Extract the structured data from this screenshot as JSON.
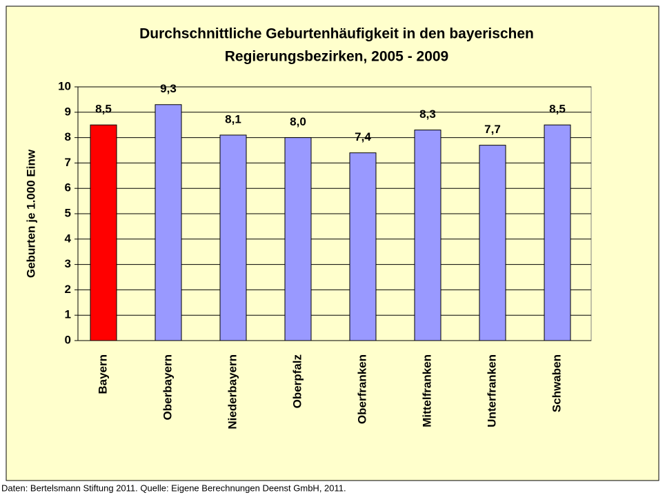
{
  "chart_data": {
    "type": "bar",
    "title": [
      "Durchschnittliche Geburtenhäufigkeit in den bayerischen",
      "Regierungsbezirken, 2005 - 2009"
    ],
    "y_label": "Geburten je 1.000 Einw",
    "categories": [
      "Bayern",
      "Oberbayern",
      "Niederbayern",
      "Oberpfalz",
      "Oberfranken",
      "Mittelfranken",
      "Unterfranken",
      "Schwaben"
    ],
    "values": [
      8.5,
      9.3,
      8.1,
      8.0,
      7.4,
      8.3,
      7.7,
      8.5
    ],
    "value_labels": [
      "8,5",
      "9,3",
      "8,1",
      "8,0",
      "7,4",
      "8,3",
      "7,7",
      "8,5"
    ],
    "colors": [
      "#ff0000",
      "#9999ff",
      "#9999ff",
      "#9999ff",
      "#9999ff",
      "#9999ff",
      "#9999ff",
      "#9999ff"
    ],
    "ylim": [
      0,
      10
    ],
    "yticks": [
      0,
      1,
      2,
      3,
      4,
      5,
      6,
      7,
      8,
      9,
      10
    ],
    "grid": true,
    "footer": "Daten: Bertelsmann Stiftung 2011. Quelle: Eigene Berechnungen Deenst GmbH, 2011."
  }
}
